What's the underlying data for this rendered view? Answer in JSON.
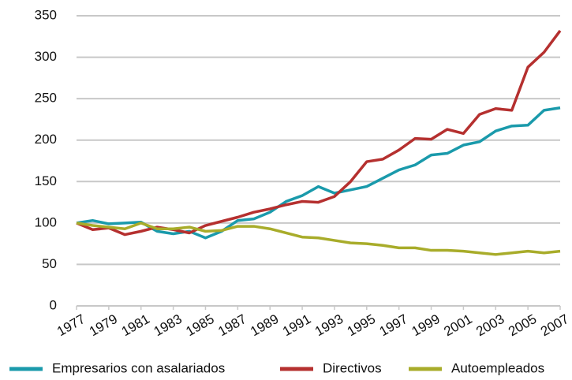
{
  "chart_data": {
    "type": "line",
    "x": [
      1977,
      1978,
      1979,
      1980,
      1981,
      1982,
      1983,
      1984,
      1985,
      1986,
      1987,
      1988,
      1989,
      1990,
      1991,
      1992,
      1993,
      1994,
      1995,
      1996,
      1997,
      1998,
      1999,
      2000,
      2001,
      2002,
      2003,
      2004,
      2005,
      2006,
      2007
    ],
    "series": [
      {
        "name": "Empresarios con asalariados",
        "color": "#1a9aab",
        "values": [
          100,
          103,
          99,
          100,
          101,
          90,
          87,
          90,
          82,
          90,
          103,
          105,
          113,
          126,
          133,
          144,
          136,
          140,
          144,
          154,
          164,
          170,
          182,
          184,
          194,
          198,
          211,
          217,
          218,
          236,
          239
        ]
      },
      {
        "name": "Directivos",
        "color": "#b5302f",
        "values": [
          100,
          92,
          94,
          86,
          90,
          95,
          92,
          88,
          97,
          102,
          107,
          113,
          117,
          122,
          126,
          125,
          132,
          150,
          174,
          177,
          188,
          202,
          201,
          213,
          208,
          231,
          238,
          236,
          288,
          306,
          332
        ]
      },
      {
        "name": "Autoempleados",
        "color": "#a8ac2a",
        "values": [
          100,
          97,
          95,
          93,
          100,
          93,
          93,
          95,
          90,
          91,
          96,
          96,
          93,
          88,
          83,
          82,
          79,
          76,
          75,
          73,
          70,
          70,
          67,
          67,
          66,
          64,
          62,
          64,
          66,
          64,
          66
        ]
      }
    ],
    "xlim": [
      1977,
      2007
    ],
    "xticks": [
      1977,
      1979,
      1981,
      1983,
      1985,
      1987,
      1989,
      1991,
      1993,
      1995,
      1997,
      1999,
      2001,
      2003,
      2005,
      2007
    ],
    "ylim": [
      0,
      350
    ],
    "yticks": [
      0,
      50,
      100,
      150,
      200,
      250,
      300,
      350
    ],
    "grid": true,
    "legend": "bottom"
  }
}
